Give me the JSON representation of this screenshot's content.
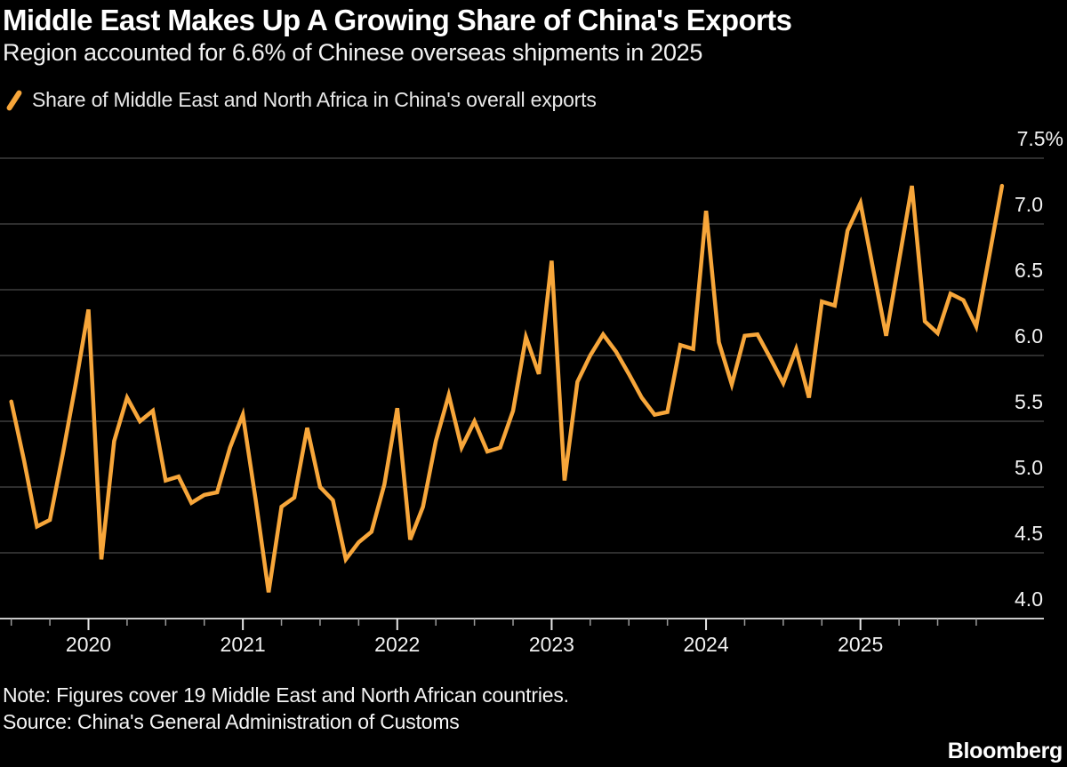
{
  "header": {
    "title": "Middle East Makes Up A Growing Share of China's Exports",
    "subtitle": "Region accounted for 6.6% of Chinese overseas shipments in 2025"
  },
  "legend": {
    "label": "Share of Middle East and North Africa in China's overall exports",
    "marker": "orange-slash-icon"
  },
  "footer": {
    "note": "Note: Figures cover 19 Middle East and North African countries.",
    "source": "Source: China's General Administration of Customs",
    "brand": "Bloomberg"
  },
  "style": {
    "background": "#000000",
    "accent": "#F7A63A",
    "text_color": "#FFFFFF",
    "grid_color": "#3D3D3D",
    "axis_color": "#C9C9C9",
    "minor_tick_color": "#9A9A9A",
    "major_tick_color": "#E6E6E6"
  },
  "chart_data": {
    "type": "line",
    "title": "Middle East Makes Up A Growing Share of China's Exports",
    "series_name": "Share of Middle East and North Africa in China's overall exports",
    "unit": "%",
    "grid": true,
    "legend_position": "top-left",
    "ylim": [
      4.0,
      7.5
    ],
    "ytick_values": [
      7.5,
      7.0,
      6.5,
      6.0,
      5.5,
      5.0,
      4.5,
      4.0
    ],
    "ytick_labels": [
      "7.5%",
      "7.0",
      "6.5",
      "6.0",
      "5.5",
      "5.0",
      "4.5",
      "4.0"
    ],
    "xtick_year_labels": [
      "2020",
      "2021",
      "2022",
      "2023",
      "2024",
      "2025"
    ],
    "x": [
      "2019-07",
      "2019-08",
      "2019-09",
      "2019-10",
      "2019-11",
      "2019-12",
      "2020-01",
      "2020-02",
      "2020-03",
      "2020-04",
      "2020-05",
      "2020-06",
      "2020-07",
      "2020-08",
      "2020-09",
      "2020-10",
      "2020-11",
      "2020-12",
      "2021-01",
      "2021-02",
      "2021-03",
      "2021-04",
      "2021-05",
      "2021-06",
      "2021-07",
      "2021-08",
      "2021-09",
      "2021-10",
      "2021-11",
      "2021-12",
      "2022-01",
      "2022-02",
      "2022-03",
      "2022-04",
      "2022-05",
      "2022-06",
      "2022-07",
      "2022-08",
      "2022-09",
      "2022-10",
      "2022-11",
      "2022-12",
      "2023-01",
      "2023-02",
      "2023-03",
      "2023-04",
      "2023-05",
      "2023-06",
      "2023-07",
      "2023-08",
      "2023-09",
      "2023-10",
      "2023-11",
      "2023-12",
      "2024-01",
      "2024-02",
      "2024-03",
      "2024-04",
      "2024-05",
      "2024-06",
      "2024-07",
      "2024-08",
      "2024-09",
      "2024-10",
      "2024-11",
      "2024-12",
      "2025-01",
      "2025-02",
      "2025-03",
      "2025-04",
      "2025-05",
      "2025-06",
      "2025-07",
      "2025-08",
      "2025-09",
      "2025-10",
      "2025-11",
      "2025-12"
    ],
    "values": [
      5.65,
      5.2,
      4.7,
      4.75,
      5.25,
      5.78,
      6.35,
      4.45,
      5.35,
      5.68,
      5.5,
      5.58,
      5.05,
      5.08,
      4.88,
      4.94,
      4.96,
      5.3,
      5.55,
      4.9,
      4.2,
      4.85,
      4.92,
      5.45,
      5.0,
      4.9,
      4.45,
      4.58,
      4.66,
      5.02,
      5.6,
      4.6,
      4.85,
      5.35,
      5.7,
      5.3,
      5.5,
      5.27,
      5.3,
      5.58,
      6.14,
      5.86,
      6.72,
      5.05,
      5.8,
      6.0,
      6.16,
      6.03,
      5.86,
      5.68,
      5.55,
      5.57,
      6.08,
      6.05,
      7.1,
      6.1,
      5.78,
      6.15,
      6.16,
      5.98,
      5.79,
      6.05,
      5.68,
      6.41,
      6.38,
      6.95,
      7.16,
      6.65,
      6.15,
      6.72,
      7.29,
      6.26,
      6.17,
      6.47,
      6.42,
      6.22,
      6.75,
      7.29
    ]
  }
}
